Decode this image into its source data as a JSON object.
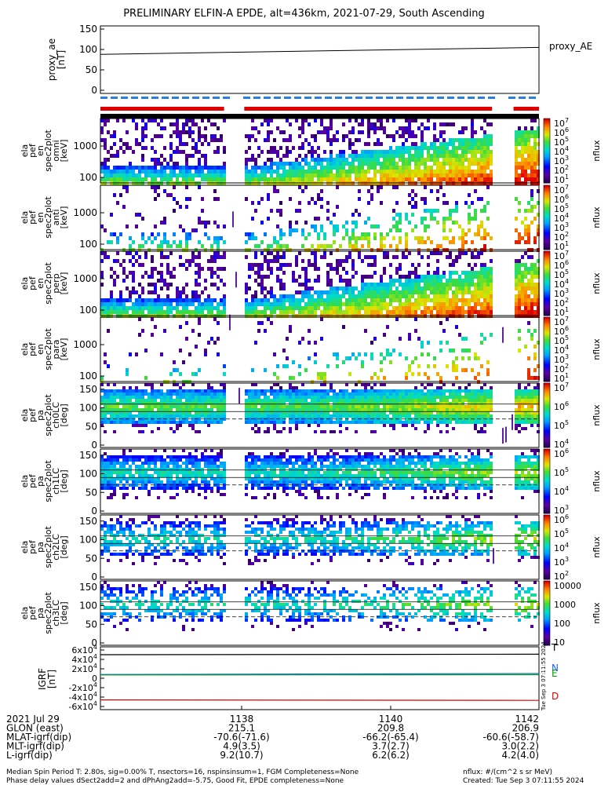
{
  "title": "PRELIMINARY ELFIN-A EPDE, alt=436km, 2021-07-29, South Ascending",
  "proxy_ae": {
    "ylabel_lines": [
      "proxy_ae",
      "[nT]"
    ],
    "legend": "proxy_AE",
    "yticks": [
      "150",
      "100",
      "50",
      "0"
    ],
    "values": [
      88,
      105
    ]
  },
  "spectrogram_panels": [
    {
      "ylabel_lines": [
        "ela",
        "pef",
        "en",
        "spec2plot",
        "omni",
        "[keV]"
      ],
      "yticks": [
        "1000",
        "100"
      ],
      "cbar_ticks": [
        "10^7",
        "10^6",
        "10^5",
        "10^4",
        "10^3",
        "10^2",
        "10^1"
      ],
      "cbar_label": "nflux",
      "kind": "energy",
      "density": 0.9
    },
    {
      "ylabel_lines": [
        "ela",
        "pef",
        "en",
        "spec2plot",
        "anti",
        "[keV]"
      ],
      "yticks": [
        "1000",
        "100"
      ],
      "cbar_ticks": [
        "10^7",
        "10^6",
        "10^5",
        "10^4",
        "10^3",
        "10^2",
        "10^1"
      ],
      "cbar_label": "nflux",
      "kind": "energy",
      "density": 0.35
    },
    {
      "ylabel_lines": [
        "ela",
        "pef",
        "en",
        "spec2plot",
        "perp",
        "[keV]"
      ],
      "yticks": [
        "1000",
        "100"
      ],
      "cbar_ticks": [
        "10^7",
        "10^6",
        "10^5",
        "10^4",
        "10^3",
        "10^2",
        "10^1"
      ],
      "cbar_label": "nflux",
      "kind": "energy",
      "density": 0.9
    },
    {
      "ylabel_lines": [
        "ela",
        "pef",
        "en",
        "spec2plot",
        "para",
        "[keV]"
      ],
      "yticks": [
        "1000",
        "100"
      ],
      "cbar_ticks": [
        "10^7",
        "10^6",
        "10^5",
        "10^4",
        "10^3",
        "10^2",
        "10^1"
      ],
      "cbar_label": "nflux",
      "kind": "energy",
      "density": 0.15
    },
    {
      "ylabel_lines": [
        "ela",
        "pef",
        "pa",
        "spec2plot",
        "ch0LC",
        "[deg]"
      ],
      "yticks": [
        "150",
        "100",
        "50",
        "0"
      ],
      "cbar_ticks": [
        "10^7",
        "10^6",
        "10^5",
        "10^4"
      ],
      "cbar_label": "nflux",
      "kind": "pa",
      "density": 0.95
    },
    {
      "ylabel_lines": [
        "ela",
        "pef",
        "pa",
        "spec2plot",
        "ch1LC",
        "[deg]"
      ],
      "yticks": [
        "150",
        "100",
        "50",
        "0"
      ],
      "cbar_ticks": [
        "10^6",
        "10^5",
        "10^4",
        "10^3"
      ],
      "cbar_label": "nflux",
      "kind": "pa",
      "density": 0.85
    },
    {
      "ylabel_lines": [
        "ela",
        "pef",
        "pa",
        "spec2plot",
        "ch2LC",
        "[deg]"
      ],
      "yticks": [
        "150",
        "100",
        "50",
        "0"
      ],
      "cbar_ticks": [
        "10^6",
        "10^5",
        "10^4",
        "10^3",
        "10^2"
      ],
      "cbar_label": "nflux",
      "kind": "pa",
      "density": 0.6
    },
    {
      "ylabel_lines": [
        "ela",
        "pef",
        "pa",
        "spec2plot",
        "ch3LC",
        "[deg]"
      ],
      "yticks": [
        "150",
        "100",
        "50",
        "0"
      ],
      "cbar_ticks": [
        "10000",
        "1000",
        "100",
        "10"
      ],
      "cbar_label": "nflux",
      "kind": "pa",
      "density": 0.45
    }
  ],
  "igrf": {
    "ylabel_lines": [
      "IGRF",
      "[nT]"
    ],
    "yticks": [
      "6x10^4",
      "4x10^4",
      "2x10^4",
      "0",
      "-2x10^4",
      "-4x10^4",
      "-6x10^4"
    ],
    "legend": [
      {
        "label": "T",
        "color": "#000000"
      },
      {
        "label": "N",
        "color": "#2060ff"
      },
      {
        "label": "E",
        "color": "#00a000"
      },
      {
        "label": "D",
        "color": "#e00000"
      }
    ],
    "stamp": "Tue Sep  3 07:11:55 2024"
  },
  "chart_data": {
    "type": "heatmap",
    "title": "PRELIMINARY ELFIN-A EPDE, alt=436km, 2021-07-29, South Ascending",
    "x_ticks": [
      "1138",
      "1140",
      "1142"
    ],
    "series": [
      {
        "name": "proxy_AE",
        "x": [
          "start",
          "end"
        ],
        "values": [
          88,
          105
        ]
      },
      {
        "name": "T",
        "values": [
          50000,
          51000
        ]
      },
      {
        "name": "N",
        "values": [
          8000,
          10000
        ]
      },
      {
        "name": "E",
        "values": [
          7000,
          7500
        ]
      },
      {
        "name": "D",
        "values": [
          -46000,
          -47000
        ]
      }
    ]
  },
  "footer": {
    "rows": [
      {
        "label": "2021 Jul 29",
        "vals": [
          "1138",
          "1140",
          "1142"
        ]
      },
      {
        "label": "GLON (east)",
        "vals": [
          "215.1",
          "209.8",
          "206.9"
        ]
      },
      {
        "label": "MLAT-igrf(dip)",
        "vals": [
          "-70.6(-71.6)",
          "-66.2(-65.4)",
          "-60.6(-58.7)"
        ]
      },
      {
        "label": "MLT-igrf(dip)",
        "vals": [
          "4.9(3.5)",
          "3.7(2.7)",
          "3.0(2.2)"
        ]
      },
      {
        "label": "L-igrf(dip)",
        "vals": [
          "9.2(10.7)",
          "6.2(6.2)",
          "4.2(4.0)"
        ]
      }
    ],
    "note_line1": "Median Spin Period T: 2.80s, sig=0.00% T, nsectors=16, nspinsinsum=1, FGM Completeness=None",
    "note_line2": "Phase delay values dSect2add=2 and dPhAng2add=-5.75, Good Fit, EPDE completeness=None",
    "units": "nflux: #/(cm^2 s sr MeV)",
    "created": "Created: Tue Sep  3 07:11:55 2024"
  }
}
